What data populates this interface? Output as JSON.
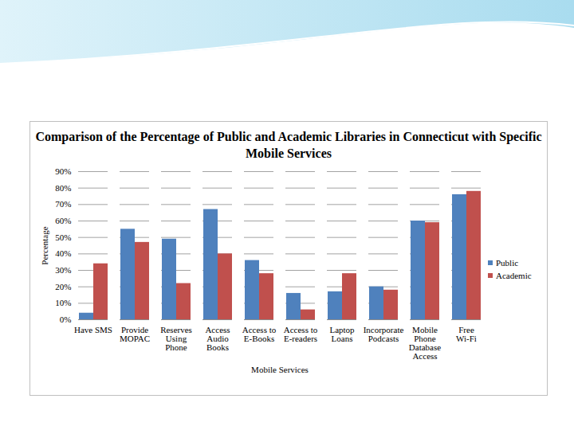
{
  "chart_data": {
    "type": "bar",
    "title": "Comparison of the Percentage of Public and Academic Libraries in Connecticut with Specific Mobile Services",
    "x_label": "Mobile Services",
    "y_label": "Percentage",
    "categories": [
      "Have SMS",
      "Provide MOPAC",
      "Reserves Using Phone",
      "Access Audio Books",
      "Access to E-Books",
      "Access to E-readers",
      "Laptop Loans",
      "Incorporate Podcasts",
      "Mobile Phone Database Access",
      "Free Wi-Fi"
    ],
    "series": [
      {
        "name": "Public",
        "color": "#4f81bd",
        "values": [
          4,
          55,
          49,
          67,
          36,
          16,
          17,
          20,
          60,
          76
        ]
      },
      {
        "name": "Academic",
        "color": "#c0504d",
        "values": [
          34,
          47,
          22,
          40,
          28,
          6,
          28,
          18,
          59,
          78
        ]
      }
    ],
    "ylim": [
      0,
      90
    ],
    "yticks": [
      {
        "value": 0,
        "label": "0%"
      },
      {
        "value": 10,
        "label": "10%"
      },
      {
        "value": 20,
        "label": "20%"
      },
      {
        "value": 30,
        "label": "30%"
      },
      {
        "value": 40,
        "label": "40%"
      },
      {
        "value": 50,
        "label": "50%"
      },
      {
        "value": 60,
        "label": "60%"
      },
      {
        "value": 70,
        "label": "70%"
      },
      {
        "value": 80,
        "label": "80%"
      },
      {
        "value": 90,
        "label": "90%"
      }
    ],
    "grid": true,
    "legend": "right"
  }
}
